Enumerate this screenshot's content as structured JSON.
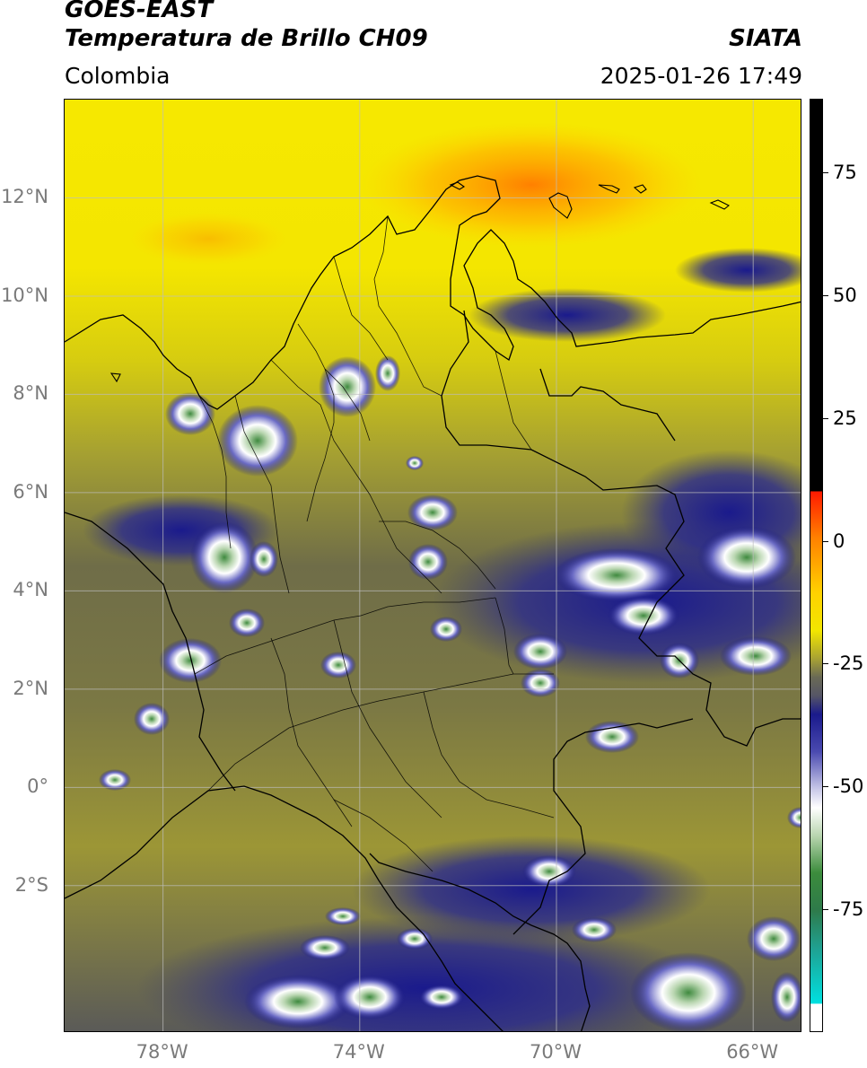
{
  "header": {
    "satellite": "GOES-EAST",
    "product": "Temperatura de Brillo CH09",
    "brand": "SIATA",
    "region": "Colombia",
    "timestamp": "2025-01-26 17:49"
  },
  "map": {
    "lon_range": [
      -80,
      -65
    ],
    "lat_range": [
      -5,
      14
    ],
    "latitude_ticks": [
      {
        "value": 12,
        "label": "12°N"
      },
      {
        "value": 10,
        "label": "10°N"
      },
      {
        "value": 8,
        "label": "8°N"
      },
      {
        "value": 6,
        "label": "6°N"
      },
      {
        "value": 4,
        "label": "4°N"
      },
      {
        "value": 2,
        "label": "2°N"
      },
      {
        "value": 0,
        "label": "0°"
      },
      {
        "value": -2,
        "label": "2°S"
      }
    ],
    "longitude_ticks": [
      {
        "value": -78,
        "label": "78°W"
      },
      {
        "value": -74,
        "label": "74°W"
      },
      {
        "value": -70,
        "label": "70°W"
      },
      {
        "value": -66,
        "label": "66°W"
      }
    ],
    "colors": {
      "background_field": "#8a8a3a",
      "warm": "#f2e600",
      "hot": "#ff8c00",
      "cold_blue": "#1a1a8c",
      "cold_white": "#ffffff",
      "coldest_green": "#3c8c3c",
      "border": "#000000",
      "grid": "#bdbdbd"
    }
  },
  "colorbar": {
    "range": [
      -100,
      90
    ],
    "ticks": [
      {
        "value": 75,
        "label": "75"
      },
      {
        "value": 50,
        "label": "50"
      },
      {
        "value": 25,
        "label": "25"
      },
      {
        "value": 0,
        "label": "0"
      },
      {
        "value": -25,
        "label": "-25"
      },
      {
        "value": -50,
        "label": "-50"
      },
      {
        "value": -75,
        "label": "-75"
      }
    ]
  }
}
